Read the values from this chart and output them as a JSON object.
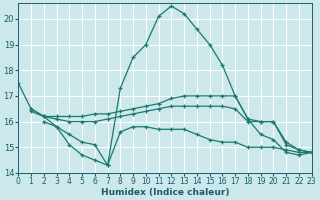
{
  "xlabel": "Humidex (Indice chaleur)",
  "background_color": "#cce8ea",
  "grid_color": "#ffffff",
  "line_color": "#1a7a6e",
  "text_color": "#1a5c6e",
  "xlim": [
    0,
    23
  ],
  "ylim": [
    14,
    20.6
  ],
  "yticks": [
    14,
    15,
    16,
    17,
    18,
    19,
    20
  ],
  "xticks": [
    0,
    1,
    2,
    3,
    4,
    5,
    6,
    7,
    8,
    9,
    10,
    11,
    12,
    13,
    14,
    15,
    16,
    17,
    18,
    19,
    20,
    21,
    22,
    23
  ],
  "series": [
    {
      "x": [
        0,
        1,
        2,
        3,
        4,
        5,
        6,
        7,
        8,
        9,
        10,
        11,
        12,
        13,
        14,
        15,
        16,
        17,
        18,
        19,
        20,
        21,
        22,
        23
      ],
      "y": [
        17.5,
        16.5,
        16.2,
        15.8,
        15.1,
        14.7,
        14.5,
        14.3,
        17.3,
        18.5,
        19.0,
        20.1,
        20.5,
        20.2,
        19.6,
        19.0,
        18.2,
        17.0,
        16.1,
        15.5,
        15.3,
        14.8,
        14.7,
        14.8
      ]
    },
    {
      "x": [
        1,
        2,
        3,
        4,
        5,
        6,
        7,
        8,
        9,
        10,
        11,
        12,
        13,
        14,
        15,
        16,
        17,
        18,
        19,
        20,
        21,
        22,
        23
      ],
      "y": [
        16.5,
        16.2,
        16.2,
        16.2,
        16.2,
        16.3,
        16.3,
        16.4,
        16.5,
        16.6,
        16.7,
        16.9,
        17.0,
        17.0,
        17.0,
        17.0,
        17.0,
        16.1,
        16.0,
        16.0,
        15.1,
        14.9,
        14.8
      ]
    },
    {
      "x": [
        1,
        2,
        3,
        4,
        5,
        6,
        7,
        8,
        9,
        10,
        11,
        12,
        13,
        14,
        15,
        16,
        17,
        18,
        19,
        20,
        21,
        22,
        23
      ],
      "y": [
        16.4,
        16.2,
        16.1,
        16.0,
        16.0,
        16.0,
        16.1,
        16.2,
        16.3,
        16.4,
        16.5,
        16.6,
        16.6,
        16.6,
        16.6,
        16.6,
        16.5,
        16.0,
        16.0,
        16.0,
        15.2,
        14.9,
        14.8
      ]
    },
    {
      "x": [
        2,
        3,
        4,
        5,
        6,
        7,
        8,
        9,
        10,
        11,
        12,
        13,
        14,
        15,
        16,
        17,
        18,
        19,
        20,
        21,
        22,
        23
      ],
      "y": [
        16.0,
        15.8,
        15.5,
        15.2,
        15.1,
        14.3,
        15.6,
        15.8,
        15.8,
        15.7,
        15.7,
        15.7,
        15.5,
        15.3,
        15.2,
        15.2,
        15.0,
        15.0,
        15.0,
        14.9,
        14.8,
        14.8
      ]
    }
  ]
}
